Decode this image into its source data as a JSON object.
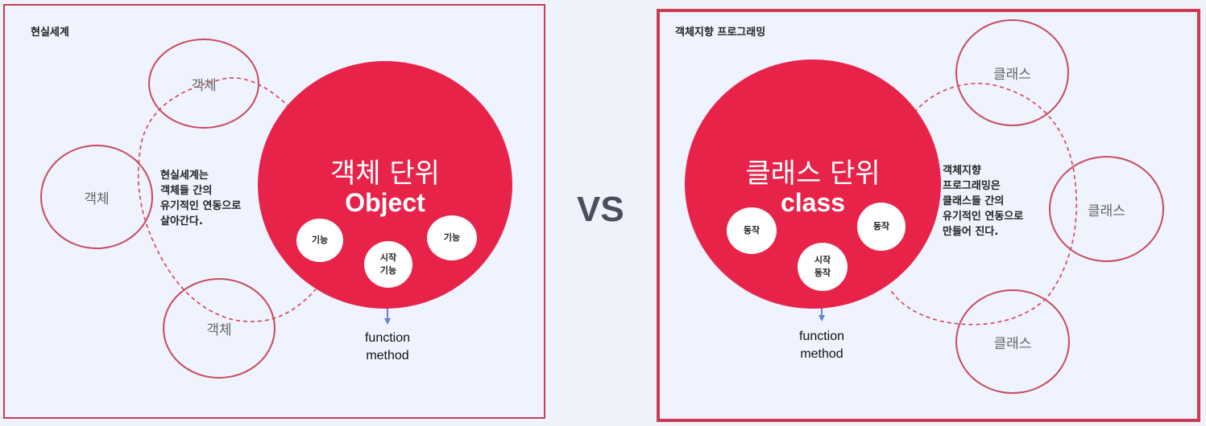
{
  "left": {
    "title": "현실세계",
    "objects": [
      "객체",
      "객체",
      "객체"
    ],
    "center_title": "객체 단위",
    "center_sub": "Object",
    "features": [
      "기능",
      "시작\n기능",
      "기능"
    ],
    "note": "현실세계는\n객체들 간의\n유기적인 연동으로\n살아간다.",
    "fn_label": "function\nmethod"
  },
  "vs_label": "VS",
  "right": {
    "title": "객체지향 프로그래밍",
    "classes": [
      "클래스",
      "클래스",
      "클래스"
    ],
    "center_title": "클래스 단위",
    "center_sub": "class",
    "actions": [
      "동작",
      "시작\n동작",
      "동작"
    ],
    "note": "객체지향\n프로그래밍은\n클래스들 간의\n유기적인 연동으로\n만들어 진다.",
    "fn_label": "function\nmethod"
  },
  "colors": {
    "accent": "#e8234a",
    "border": "#cc3b52",
    "dashed": "#d94058",
    "arrow": "#6b7fd8"
  }
}
